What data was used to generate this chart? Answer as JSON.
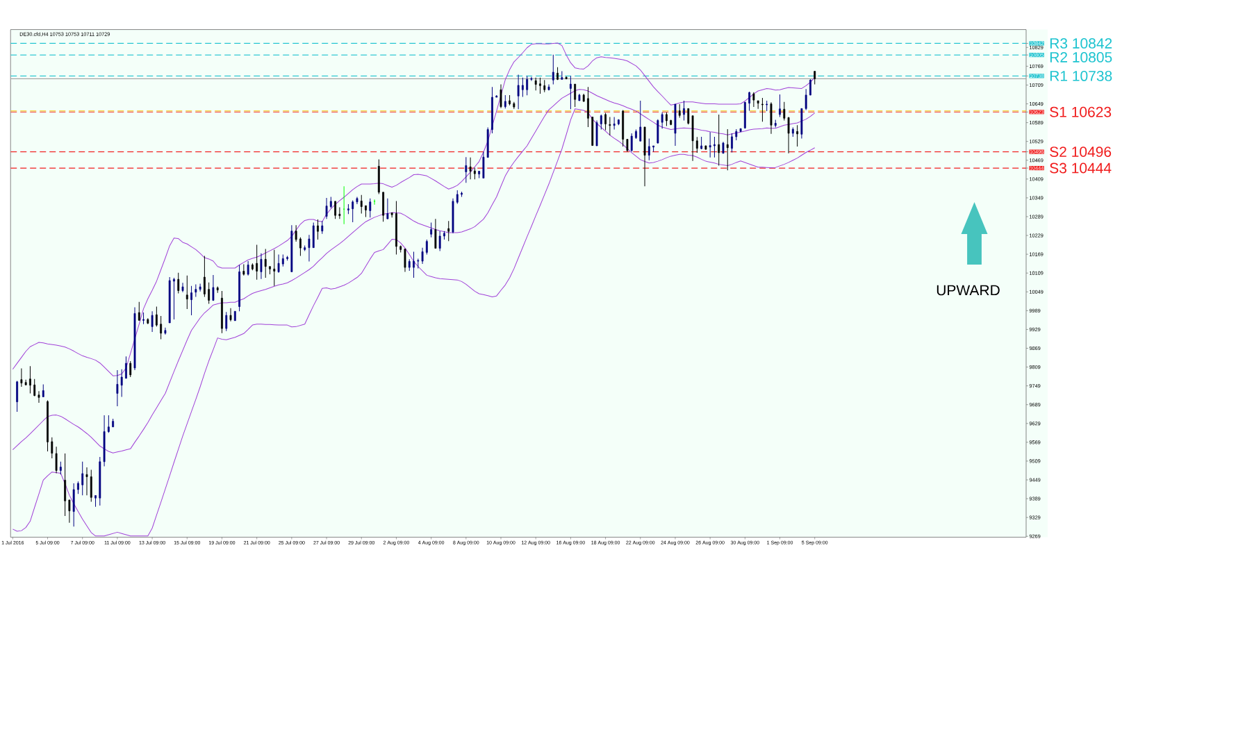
{
  "chart_data": {
    "type": "candlestick",
    "title": "DE30.cfd,H4 10753 10753 10711 10729",
    "categories": [
      "1 Jul 2016",
      null,
      null,
      null,
      null,
      null,
      null,
      null,
      "5 Jul 09:00",
      null,
      null,
      null,
      null,
      null,
      null,
      null,
      "7 Jul 09:00",
      null,
      null,
      null,
      null,
      null,
      null,
      null,
      "11 Jul 09:00",
      null,
      null,
      null,
      null,
      null,
      null,
      null,
      "13 Jul 09:00",
      null,
      null,
      null,
      null,
      null,
      null,
      null,
      "15 Jul 09:00",
      null,
      null,
      null,
      null,
      null,
      null,
      null,
      "19 Jul 09:00",
      null,
      null,
      null,
      null,
      null,
      null,
      null,
      "21 Jul 09:00",
      null,
      null,
      null,
      null,
      null,
      null,
      null,
      "25 Jul 09:00",
      null,
      null,
      null,
      null,
      null,
      null,
      null,
      "27 Jul 09:00",
      null,
      null,
      null,
      null,
      null,
      null,
      null,
      "29 Jul 09:00",
      null,
      null,
      null,
      null,
      null,
      null,
      null,
      "2 Aug 09:00",
      null,
      null,
      null,
      null,
      null,
      null,
      null,
      "4 Aug 09:00",
      null,
      null,
      null,
      null,
      null,
      null,
      null,
      "8 Aug 09:00",
      null,
      null,
      null,
      null,
      null,
      null,
      null,
      "10 Aug 09:00",
      null,
      null,
      null,
      null,
      null,
      null,
      null,
      "12 Aug 09:00",
      null,
      null,
      null,
      null,
      null,
      null,
      null,
      "16 Aug 09:00",
      null,
      null,
      null,
      null,
      null,
      null,
      null,
      "18 Aug 09:00",
      null,
      null,
      null,
      null,
      null,
      null,
      null,
      "22 Aug 09:00",
      null,
      null,
      null,
      null,
      null,
      null,
      null,
      "24 Aug 09:00",
      null,
      null,
      null,
      null,
      null,
      null,
      null,
      "26 Aug 09:00",
      null,
      null,
      null,
      null,
      null,
      null,
      null,
      "30 Aug 09:00",
      null,
      null,
      null,
      null,
      null,
      null,
      null,
      "1 Sep 09:00",
      null,
      null,
      null,
      null,
      null,
      null,
      null,
      "5 Sep 09:00",
      null,
      null,
      null,
      null,
      null,
      null,
      null,
      null,
      null,
      null,
      null,
      null,
      null,
      null,
      null,
      null,
      null,
      null,
      null,
      null,
      null,
      null,
      null,
      null,
      null,
      null,
      null,
      null,
      null,
      null,
      null,
      null,
      null,
      null,
      null,
      null,
      null,
      null,
      null,
      null,
      null,
      null,
      null,
      null,
      null,
      null,
      null,
      null
    ],
    "ohlc": [
      null,
      [
        9698,
        9765,
        9666,
        9762
      ],
      [
        9769,
        9805,
        9746,
        9758
      ],
      [
        9760,
        9769,
        9751,
        9752
      ],
      [
        9771,
        9812,
        9725,
        9751
      ],
      [
        9752,
        9771,
        9716,
        9718
      ],
      [
        9720,
        9732,
        9695,
        9712
      ],
      [
        9714,
        9754,
        9714,
        9734
      ],
      [
        9699,
        9703,
        9540,
        9570
      ],
      [
        9571,
        9585,
        9518,
        9534
      ],
      [
        9533,
        9555,
        9470,
        9479
      ],
      [
        9479,
        9507,
        9466,
        9490
      ],
      [
        9448,
        9533,
        9334,
        9382
      ],
      [
        9385,
        9385,
        9312,
        9350
      ],
      [
        9348,
        9438,
        9300,
        9418
      ],
      [
        9418,
        9444,
        9404,
        9438
      ],
      [
        9433,
        9507,
        9400,
        9469
      ],
      [
        9466,
        9489,
        9400,
        9459
      ],
      [
        9459,
        9481,
        9379,
        9393
      ],
      [
        9391,
        9399,
        9363,
        9399
      ],
      [
        9391,
        9522,
        9367,
        9507
      ],
      [
        9507,
        9655,
        9492,
        9603
      ],
      [
        9603,
        9655,
        9599,
        9618
      ],
      [
        9618,
        9644,
        9618,
        9636
      ],
      [
        9725,
        9799,
        9684,
        9754
      ],
      [
        9751,
        9802,
        9714,
        9777
      ],
      [
        9773,
        9843,
        9773,
        9821
      ],
      [
        9821,
        9828,
        9777,
        9784
      ],
      [
        9806,
        10000,
        9799,
        9980
      ],
      [
        9983,
        10017,
        9958,
        9958
      ],
      [
        9958,
        9983,
        9946,
        9961
      ],
      [
        9961,
        9965,
        9946,
        9949
      ],
      [
        9938,
        9987,
        9921,
        9974
      ],
      [
        9976,
        10002,
        9938,
        9943
      ],
      [
        9946,
        9972,
        9898,
        9917
      ],
      [
        9917,
        9935,
        9913,
        9926
      ],
      [
        9950,
        10096,
        9950,
        10085
      ],
      [
        10083,
        10094,
        9961,
        10089
      ],
      [
        10089,
        10110,
        10044,
        10053
      ],
      [
        10053,
        10078,
        10048,
        10065
      ],
      [
        10039,
        10101,
        9994,
        10026
      ],
      [
        10024,
        10068,
        9974,
        10046
      ],
      [
        10048,
        10073,
        10033,
        10057
      ],
      [
        10057,
        10075,
        10050,
        10065
      ],
      [
        10096,
        10164,
        10033,
        10042
      ],
      [
        10057,
        10079,
        10011,
        10022
      ],
      [
        10022,
        10103,
        10020,
        10063
      ],
      [
        10062,
        10066,
        10046,
        10055
      ],
      [
        10029,
        10052,
        9917,
        9932
      ],
      [
        9932,
        9985,
        9924,
        9974
      ],
      [
        9974,
        9997,
        9955,
        9960
      ],
      [
        9957,
        9987,
        9957,
        9987
      ],
      [
        10002,
        10135,
        9987,
        10113
      ],
      [
        10115,
        10137,
        10101,
        10105
      ],
      [
        10105,
        10147,
        10101,
        10135
      ],
      [
        10135,
        10140,
        10118,
        10122
      ],
      [
        10140,
        10199,
        10088,
        10115
      ],
      [
        10113,
        10172,
        10090,
        10153
      ],
      [
        10153,
        10186,
        10094,
        10130
      ],
      [
        10130,
        10130,
        10105,
        10122
      ],
      [
        10122,
        10183,
        10068,
        10115
      ],
      [
        10113,
        10168,
        10110,
        10140
      ],
      [
        10138,
        10168,
        10130,
        10155
      ],
      [
        10155,
        10164,
        10149,
        10159
      ],
      [
        10113,
        10262,
        10113,
        10243
      ],
      [
        10243,
        10262,
        10209,
        10216
      ],
      [
        10218,
        10223,
        10164,
        10189
      ],
      [
        10184,
        10197,
        10179,
        10190
      ],
      [
        10190,
        10231,
        10146,
        10218
      ],
      [
        10190,
        10270,
        10190,
        10260
      ],
      [
        10260,
        10280,
        10216,
        10242
      ],
      [
        10243,
        10275,
        10234,
        10260
      ],
      [
        10290,
        10349,
        10282,
        10323
      ],
      [
        10321,
        10352,
        10316,
        10338
      ],
      [
        10338,
        10338,
        10282,
        10293
      ],
      [
        10297,
        10319,
        10282,
        10292
      ],
      [
        10313,
        10386,
        10265,
        10313
      ],
      [
        10310,
        10329,
        10297,
        10314
      ],
      [
        10314,
        10341,
        10271,
        10336
      ],
      [
        10336,
        10352,
        10329,
        10347
      ],
      [
        10339,
        10358,
        10299,
        10321
      ],
      [
        10324,
        10324,
        10288,
        10310
      ],
      [
        10308,
        10347,
        10286,
        10336
      ],
      [
        10338,
        10344,
        10327,
        10338
      ],
      [
        10450,
        10472,
        10361,
        10367
      ],
      [
        10367,
        10367,
        10273,
        10293
      ],
      [
        10282,
        10347,
        10282,
        10299
      ],
      [
        10301,
        10302,
        10286,
        10295
      ],
      [
        10299,
        10339,
        10168,
        10194
      ],
      [
        10194,
        10197,
        10175,
        10184
      ],
      [
        10186,
        10186,
        10113,
        10127
      ],
      [
        10127,
        10153,
        10116,
        10146
      ],
      [
        10127,
        10177,
        10094,
        10147
      ],
      [
        10147,
        10155,
        10124,
        10149
      ],
      [
        10147,
        10190,
        10138,
        10177
      ],
      [
        10175,
        10216,
        10168,
        10210
      ],
      [
        10233,
        10270,
        10223,
        10248
      ],
      [
        10248,
        10282,
        10188,
        10188
      ],
      [
        10188,
        10243,
        10179,
        10227
      ],
      [
        10227,
        10243,
        10216,
        10236
      ],
      [
        10251,
        10275,
        10211,
        10242
      ],
      [
        10240,
        10347,
        10236,
        10338
      ],
      [
        10335,
        10373,
        10330,
        10360
      ],
      [
        10360,
        10369,
        10352,
        10364
      ],
      [
        10432,
        10479,
        10397,
        10452
      ],
      [
        10448,
        10478,
        10408,
        10434
      ],
      [
        10435,
        10445,
        10408,
        10426
      ],
      [
        10425,
        10435,
        10412,
        10434
      ],
      [
        10412,
        10496,
        10412,
        10479
      ],
      [
        10478,
        10574,
        10478,
        10567
      ],
      [
        10567,
        10703,
        10555,
        10670
      ],
      [
        10670,
        10677,
        10670,
        10674
      ],
      [
        10694,
        10711,
        10635,
        10640
      ],
      [
        10640,
        10677,
        10634,
        10657
      ],
      [
        10659,
        10677,
        10644,
        10649
      ],
      [
        10650,
        10655,
        10633,
        10639
      ],
      [
        10674,
        10742,
        10632,
        10708
      ],
      [
        10694,
        10733,
        10671,
        10708
      ],
      [
        10694,
        10738,
        10676,
        10727
      ],
      [
        10727,
        10735,
        10722,
        10730
      ],
      [
        10723,
        10733,
        10692,
        10711
      ],
      [
        10713,
        10733,
        10681,
        10707
      ],
      [
        10707,
        10725,
        10686,
        10694
      ],
      [
        10694,
        10711,
        10692,
        10703
      ],
      [
        10725,
        10806,
        10711,
        10750
      ],
      [
        10747,
        10766,
        10725,
        10727
      ],
      [
        10727,
        10753,
        10727,
        10733
      ],
      [
        10734,
        10736,
        10727,
        10729
      ],
      [
        10698,
        10738,
        10632,
        10712
      ],
      [
        10712,
        10712,
        10639,
        10663
      ],
      [
        10659,
        10681,
        10659,
        10677
      ],
      [
        10677,
        10681,
        10655,
        10657
      ],
      [
        10666,
        10703,
        10575,
        10603
      ],
      [
        10607,
        10607,
        10516,
        10516
      ],
      [
        10515,
        10596,
        10515,
        10589
      ],
      [
        10585,
        10615,
        10567,
        10611
      ],
      [
        10615,
        10620,
        10565,
        10585
      ],
      [
        10583,
        10607,
        10548,
        10580
      ],
      [
        10580,
        10607,
        10567,
        10585
      ],
      [
        10585,
        10600,
        10581,
        10598
      ],
      [
        10626,
        10629,
        10513,
        10536
      ],
      [
        10536,
        10536,
        10496,
        10500
      ],
      [
        10500,
        10555,
        10496,
        10546
      ],
      [
        10541,
        10567,
        10537,
        10561
      ],
      [
        10530,
        10659,
        10530,
        10575
      ],
      [
        10575,
        10575,
        10386,
        10485
      ],
      [
        10485,
        10538,
        10469,
        10513
      ],
      [
        10511,
        10515,
        10496,
        10515
      ],
      [
        10524,
        10600,
        10522,
        10596
      ],
      [
        10590,
        10622,
        10570,
        10615
      ],
      [
        10615,
        10622,
        10578,
        10595
      ],
      [
        10596,
        10598,
        10581,
        10583
      ],
      [
        10555,
        10648,
        10515,
        10648
      ],
      [
        10627,
        10648,
        10605,
        10612
      ],
      [
        10615,
        10659,
        10596,
        10634
      ],
      [
        10634,
        10634,
        10583,
        10587
      ],
      [
        10611,
        10611,
        10467,
        10531
      ],
      [
        10531,
        10543,
        10493,
        10507
      ],
      [
        10506,
        10544,
        10504,
        10515
      ],
      [
        10515,
        10516,
        10502,
        10504
      ],
      [
        10511,
        10559,
        10478,
        10516
      ],
      [
        10515,
        10544,
        10478,
        10519
      ],
      [
        10519,
        10615,
        10452,
        10493
      ],
      [
        10491,
        10528,
        10491,
        10524
      ],
      [
        10519,
        10568,
        10437,
        10509
      ],
      [
        10507,
        10555,
        10494,
        10544
      ],
      [
        10544,
        10568,
        10533,
        10561
      ],
      [
        10561,
        10570,
        10559,
        10570
      ],
      [
        10572,
        10655,
        10570,
        10654
      ],
      [
        10651,
        10688,
        10627,
        10685
      ],
      [
        10681,
        10686,
        10639,
        10661
      ],
      [
        10659,
        10659,
        10633,
        10651
      ],
      [
        10648,
        10668,
        10592,
        10646
      ],
      [
        10646,
        10659,
        10626,
        10648
      ],
      [
        10649,
        10654,
        10553,
        10581
      ],
      [
        10580,
        10598,
        10574,
        10587
      ],
      [
        10615,
        10679,
        10607,
        10633
      ],
      [
        10632,
        10655,
        10596,
        10603
      ],
      [
        10605,
        10607,
        10491,
        10555
      ],
      [
        10555,
        10574,
        10544,
        10568
      ],
      [
        10561,
        10581,
        10513,
        10553
      ],
      [
        10552,
        10634,
        10538,
        10634
      ],
      [
        10634,
        10696,
        10629,
        10677
      ],
      [
        10677,
        10727,
        10676,
        10725
      ],
      [
        10753,
        10753,
        10711,
        10729
      ],
      null,
      null,
      null,
      null,
      null,
      null,
      null,
      null,
      null,
      null,
      null,
      null,
      null,
      null,
      null,
      null,
      null,
      null,
      null,
      null,
      null,
      null,
      null,
      null,
      null,
      null,
      null,
      null,
      null,
      null,
      null,
      null,
      null,
      null,
      null,
      null,
      null,
      null,
      null,
      null,
      null,
      null,
      null,
      null,
      null,
      null,
      null,
      null
    ],
    "colors": [
      null,
      "#000080",
      "#000000",
      "#000000",
      "#000000",
      "#000000",
      "#000000",
      "#000080",
      "#000000",
      "#000000",
      "#000000",
      "#000080",
      "#000000",
      "#000000",
      "#000080",
      "#000080",
      "#000080",
      "#000000",
      "#000000",
      "#000080",
      "#000080",
      "#000080",
      "#000080",
      "#000080",
      "#000080",
      "#000080",
      "#000080",
      "#000000",
      "#000080",
      "#000000",
      "#000080",
      "#000000",
      "#000080",
      "#000000",
      "#000000",
      "#000080",
      "#000080",
      "#000080",
      "#000000",
      "#000080",
      "#000000",
      "#000080",
      "#000080",
      "#000080",
      "#000000",
      "#000000",
      "#000080",
      "#000000",
      "#000000",
      "#000080",
      "#000000",
      "#000080",
      "#000080",
      "#000000",
      "#000080",
      "#000000",
      "#000000",
      "#000080",
      "#000000",
      "#000000",
      "#000000",
      "#000080",
      "#000080",
      "#000080",
      "#000080",
      "#000000",
      "#000000",
      "#000080",
      "#000080",
      "#000080",
      "#000000",
      "#000080",
      "#000080",
      "#000080",
      "#000000",
      "#000000",
      "#00ff00",
      "#000080",
      "#000080",
      "#000080",
      "#000000",
      "#000000",
      "#000080",
      "#00ff00",
      "#000000",
      "#000000",
      "#000080",
      "#000000",
      "#000000",
      "#000000",
      "#000000",
      "#000080",
      "#000080",
      "#000080",
      "#000080",
      "#000080",
      "#000080",
      "#000000",
      "#000080",
      "#000080",
      "#000000",
      "#000080",
      "#000080",
      "#000080",
      "#000080",
      "#000000",
      "#000000",
      "#000080",
      "#000080",
      "#000080",
      "#000080",
      "#000080",
      "#000000",
      "#000080",
      "#000000",
      "#000000",
      "#000080",
      "#000080",
      "#000080",
      "#000080",
      "#000000",
      "#000000",
      "#000000",
      "#000080",
      "#000080",
      "#000000",
      "#000080",
      "#000000",
      "#000080",
      "#000000",
      "#000080",
      "#000000",
      "#000000",
      "#000000",
      "#000080",
      "#000080",
      "#000000",
      "#000000",
      "#000080",
      "#000080",
      "#000000",
      "#000000",
      "#000080",
      "#000080",
      "#000080",
      "#000000",
      "#000080",
      "#000080",
      "#000080",
      "#000080",
      "#000000",
      "#000000",
      "#000080",
      "#000000",
      "#000080",
      "#000000",
      "#000000",
      "#000000",
      "#000080",
      "#000000",
      "#000080",
      "#000080",
      "#000000",
      "#000080",
      "#000000",
      "#000080",
      "#000080",
      "#000080",
      "#000080",
      "#000080",
      "#000000",
      "#000000",
      "#000000",
      "#000080",
      "#000000",
      "#000080",
      "#000080",
      "#000000",
      "#000000",
      "#000080",
      "#000000",
      "#000080",
      "#000080",
      "#000080",
      "#000000",
      null,
      null,
      null,
      null,
      null,
      null,
      null,
      null,
      null,
      null,
      null,
      null,
      null,
      null,
      null,
      null,
      null,
      null,
      null,
      null,
      null,
      null,
      null,
      null,
      null,
      null,
      null,
      null,
      null,
      null,
      null,
      null,
      null,
      null,
      null,
      null,
      null,
      null,
      null,
      null,
      null,
      null,
      null,
      null,
      null,
      null,
      null,
      null
    ],
    "series": [
      {
        "type": "line",
        "color": "#a040d8",
        "values": [
          9802,
          9821,
          9840,
          9859,
          9874,
          9881,
          9888,
          9886,
          9883,
          9881,
          9879,
          9876,
          9873,
          9867,
          9860,
          9852,
          9845,
          9840,
          9836,
          9831,
          9822,
          9809,
          9795,
          9781,
          9782,
          9787,
          9806,
          9852,
          null,
          9946,
          9995,
          10027,
          10054,
          10083,
          10120,
          10157,
          10196,
          10221,
          10219,
          10207,
          10202,
          10193,
          10184,
          10172,
          10158,
          10154,
          10147,
          10130,
          10125,
          10125,
          10125,
          10125,
          10135,
          10143,
          10151,
          10156,
          10160,
          10166,
          10173,
          10180,
          10187,
          10195,
          10204,
          10213,
          10226,
          10246,
          10265,
          10277,
          10280,
          10280,
          10275,
          10273,
          10297,
          10314,
          10328,
          10340,
          10351,
          10363,
          10375,
          10385,
          10393,
          10393,
          10393,
          10394,
          10396,
          10394,
          10388,
          10383,
          10389,
          10398,
          10406,
          10414,
          10423,
          10424,
          10422,
          10419,
          10411,
          10403,
          10394,
          10385,
          10377,
          10382,
          10389,
          10401,
          10416,
          10431,
          10448,
          10465,
          10495,
          10530,
          null,
          10626,
          null,
          10726,
          10758,
          10783,
          10797,
          10812,
          10828,
          10839,
          10841,
          10841,
          10840,
          10840,
          10842,
          10843,
          10835,
          10805,
          10780,
          10764,
          10761,
          10760,
          10770,
          10786,
          10796,
          10799,
          10797,
          10796,
          10794,
          10792,
          10790,
          10786,
          10778,
          10770,
          10757,
          10739,
          10721,
          10703,
          10688,
          10674,
          10659,
          10645,
          10648,
          10652,
          10655,
          10655,
          10655,
          10653,
          10651,
          10649,
          10649,
          10649,
          10648,
          10648,
          10648,
          10648,
          10648,
          10649,
          10658,
          10669,
          10681,
          10690,
          10694,
          10698,
          10696,
          10693,
          10694,
          10698,
          10701,
          10700,
          10699,
          10698,
          10707,
          10718,
          10733,
          null,
          null,
          null,
          null,
          null,
          null,
          null,
          null,
          null,
          null,
          null,
          null,
          null,
          null,
          null,
          null,
          null,
          null,
          null,
          null,
          null,
          null,
          null,
          null,
          null,
          null,
          null,
          null,
          null,
          null,
          null,
          null,
          null,
          null,
          null,
          null,
          null,
          null,
          null,
          null,
          null,
          null,
          null,
          null,
          null,
          null,
          null,
          null
        ]
      },
      {
        "type": "line",
        "color": "#a040d8",
        "values": [
          9545,
          9558,
          9571,
          9583,
          9596,
          9610,
          9624,
          9638,
          9651,
          9655,
          9656,
          9652,
          9644,
          9635,
          9626,
          9618,
          9608,
          9597,
          9585,
          9571,
          9557,
          9548,
          9540,
          9535,
          9538,
          9541,
          9545,
          9548,
          9569,
          9589,
          9610,
          9632,
          9656,
          9679,
          9702,
          9725,
          9760,
          9795,
          9829,
          9862,
          9895,
          9926,
          9946,
          9966,
          9982,
          9994,
          10007,
          10011,
          10014,
          10014,
          10016,
          10016,
          10022,
          10027,
          10036,
          10044,
          10049,
          10053,
          10057,
          10062,
          10067,
          10071,
          10074,
          10078,
          10085,
          10093,
          10102,
          10111,
          10120,
          10131,
          10145,
          10158,
          10172,
          10183,
          10193,
          10203,
          10214,
          10226,
          10238,
          10250,
          10262,
          10273,
          10280,
          10287,
          10292,
          10297,
          10299,
          10302,
          10301,
          10300,
          10293,
          10284,
          10275,
          10268,
          10263,
          10258,
          10253,
          10248,
          10244,
          10241,
          10238,
          10238,
          10238,
          10240,
          10245,
          10250,
          10257,
          10269,
          10281,
          10301,
          10327,
          10352,
          10386,
          10419,
          10443,
          10463,
          10481,
          10498,
          10515,
          10539,
          10562,
          10586,
          10609,
          10630,
          10642,
          10655,
          10667,
          10675,
          10683,
          10691,
          10695,
          10694,
          10690,
          10683,
          10675,
          10669,
          10663,
          10657,
          10652,
          10648,
          10643,
          10637,
          10632,
          10626,
          10617,
          10608,
          10599,
          10590,
          10581,
          10575,
          10571,
          10567,
          10569,
          10571,
          10572,
          10571,
          10570,
          10568,
          10565,
          10563,
          10560,
          10558,
          10555,
          10553,
          10550,
          10553,
          10556,
          10559,
          10562,
          10566,
          10568,
          10569,
          10570,
          10572,
          10571,
          10571,
          10576,
          10581,
          10583,
          10586,
          10588,
          10594,
          10600,
          10609,
          10620,
          null,
          null,
          null,
          null,
          null,
          null,
          null,
          null,
          null,
          null,
          null,
          null,
          null,
          null,
          null,
          null,
          null,
          null,
          null,
          null,
          null,
          null,
          null,
          null,
          null,
          null,
          null,
          null,
          null,
          null,
          null,
          null,
          null,
          null,
          null,
          null,
          null,
          null,
          null,
          null,
          null,
          null,
          null,
          null,
          null,
          null,
          null,
          null
        ]
      },
      {
        "type": "line",
        "color": "#a040d8",
        "values": [
          9292,
          9285,
          9287,
          9297,
          9317,
          9361,
          9404,
          9448,
          9462,
          9474,
          9472,
          9470,
          9437,
          9400,
          9373,
          9348,
          9324,
          9302,
          9281,
          9270,
          9270,
          9270,
          9274,
          9278,
          9282,
          9278,
          9274,
          9270,
          9270,
          9270,
          9270,
          9270,
          9295,
          9337,
          9378,
          9420,
          9462,
          9505,
          9547,
          9589,
          9628,
          9667,
          9706,
          9746,
          9789,
          9829,
          9865,
          9902,
          9898,
          9896,
          9900,
          9904,
          9910,
          9916,
          9929,
          9943,
          9946,
          9946,
          9945,
          9945,
          9944,
          9943,
          9943,
          9943,
          9937,
          9938,
          9942,
          9946,
          9976,
          10005,
          10032,
          10060,
          10062,
          10058,
          10060,
          10065,
          10070,
          10077,
          10086,
          10095,
          10108,
          10131,
          10154,
          10175,
          10180,
          10184,
          10200,
          10217,
          10216,
          10205,
          10189,
          10168,
          10146,
          10130,
          10116,
          10102,
          10098,
          10094,
          10091,
          10090,
          10089,
          10088,
          10087,
          10082,
          10073,
          10062,
          10051,
          10043,
          10040,
          10037,
          10033,
          10036,
          10054,
          10071,
          10094,
          10123,
          10157,
          10191,
          10225,
          10258,
          10292,
          10325,
          10359,
          10393,
          10430,
          10467,
          10505,
          10551,
          10598,
          10633,
          10631,
          10628,
          10621,
          10600,
          10586,
          10574,
          10562,
          10549,
          10539,
          10530,
          10519,
          10506,
          10493,
          10482,
          10471,
          10465,
          10460,
          10462,
          10466,
          10471,
          10477,
          10482,
          10485,
          10488,
          10488,
          10485,
          10484,
          10479,
          10472,
          10466,
          10463,
          10460,
          10456,
          10454,
          10452,
          10456,
          10462,
          10467,
          10462,
          10457,
          10452,
          10447,
          10447,
          10446,
          10445,
          10446,
          10451,
          10456,
          10462,
          10469,
          10476,
          10485,
          10494,
          10501,
          10509,
          null,
          null,
          null,
          null,
          null,
          null,
          null,
          null,
          null,
          null,
          null,
          null,
          null,
          null,
          null,
          null,
          null,
          null,
          null,
          null,
          null,
          null,
          null,
          null,
          null,
          null,
          null,
          null,
          null,
          null,
          null,
          null,
          null,
          null,
          null,
          null,
          null,
          null,
          null,
          null,
          null,
          null,
          null,
          null,
          null,
          null,
          null,
          null
        ]
      }
    ],
    "ylim": [
      9266,
      10886
    ],
    "yticks": [
      9269,
      9329,
      9389,
      9449,
      9509,
      9569,
      9629,
      9689,
      9749,
      9809,
      9869,
      9929,
      9989,
      10049,
      10109,
      10169,
      10229,
      10289,
      10349,
      10409,
      10444,
      10469,
      10496,
      10529,
      10589,
      10623,
      10649,
      10709,
      10738,
      10769,
      10805,
      10829,
      10842
    ],
    "ref_lines": [
      {
        "axis": "y",
        "value": 10842,
        "label": "R3 10842",
        "color": "#1cc3cf",
        "line_style": "dashed"
      },
      {
        "axis": "y",
        "value": 10805,
        "label": "R2 10805",
        "color": "#1cc3cf",
        "line_style": "dashed"
      },
      {
        "axis": "y",
        "value": 10738,
        "label": "R1 10738",
        "color": "#1cc3cf",
        "line_style": "dashed"
      },
      {
        "axis": "y",
        "value": 10729,
        "color": "#a0a0a0",
        "line_style": "solid"
      },
      {
        "axis": "y",
        "value": 10626,
        "color": "#f5c400",
        "line_style": "dashed"
      },
      {
        "axis": "y",
        "value": 10623,
        "label": "S1 10623",
        "color": "#f01c1c",
        "line_style": "dashed"
      },
      {
        "axis": "y",
        "value": 10496,
        "label": "S2 10496",
        "color": "#f01c1c",
        "line_style": "dashed"
      },
      {
        "axis": "y",
        "value": 10444,
        "label": "S3 10444",
        "color": "#f01c1c",
        "line_style": "dashed"
      }
    ],
    "annotations": [
      "UPWARD"
    ]
  }
}
